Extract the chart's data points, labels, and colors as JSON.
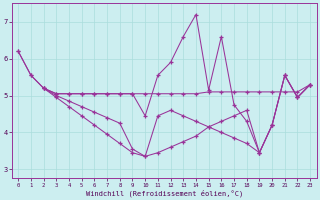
{
  "xlabel": "Windchill (Refroidissement éolien,°C)",
  "background_color": "#cceef0",
  "grid_color": "#aadddd",
  "line_color": "#993399",
  "xlim": [
    -0.5,
    23.5
  ],
  "ylim": [
    2.75,
    7.5
  ],
  "yticks": [
    3,
    4,
    5,
    6,
    7
  ],
  "xticks": [
    0,
    1,
    2,
    3,
    4,
    5,
    6,
    7,
    8,
    9,
    10,
    11,
    12,
    13,
    14,
    15,
    16,
    17,
    18,
    19,
    20,
    21,
    22,
    23
  ],
  "series": [
    {
      "x": [
        0,
        1,
        2,
        3,
        4,
        5,
        6,
        7,
        8,
        9,
        10,
        11,
        12,
        13,
        14,
        15,
        16,
        17,
        18,
        19,
        20,
        21,
        22,
        23
      ],
      "y": [
        6.2,
        5.55,
        5.2,
        5.05,
        5.05,
        5.05,
        5.05,
        5.05,
        5.05,
        5.05,
        4.45,
        5.55,
        5.9,
        6.6,
        7.2,
        5.15,
        6.6,
        4.75,
        4.3,
        3.45,
        4.2,
        5.55,
        4.95,
        5.3
      ]
    },
    {
      "x": [
        2,
        3,
        4,
        5,
        6,
        7,
        8,
        9,
        10,
        11,
        12,
        13,
        14,
        15,
        16,
        17,
        18,
        19,
        20,
        21,
        22,
        23
      ],
      "y": [
        5.2,
        5.05,
        5.05,
        5.05,
        5.05,
        5.05,
        5.05,
        5.05,
        5.05,
        5.05,
        5.05,
        5.05,
        5.05,
        5.1,
        5.1,
        5.1,
        5.1,
        5.1,
        5.1,
        5.1,
        5.1,
        5.3
      ]
    },
    {
      "x": [
        0,
        1,
        2,
        3,
        4,
        5,
        6,
        7,
        8,
        9,
        10,
        11,
        12,
        13,
        14,
        15,
        16,
        17,
        18,
        19,
        20,
        21,
        22,
        23
      ],
      "y": [
        6.2,
        5.55,
        5.2,
        5.0,
        4.85,
        4.7,
        4.55,
        4.4,
        4.25,
        3.55,
        3.35,
        4.45,
        4.6,
        4.45,
        4.3,
        4.15,
        4.0,
        3.85,
        3.7,
        3.45,
        4.2,
        5.55,
        4.95,
        5.3
      ]
    },
    {
      "x": [
        2,
        3,
        4,
        5,
        6,
        7,
        8,
        9,
        10,
        11,
        12,
        13,
        14,
        15,
        16,
        17,
        18,
        19,
        20,
        21,
        22,
        23
      ],
      "y": [
        5.2,
        4.95,
        4.7,
        4.45,
        4.2,
        3.95,
        3.7,
        3.45,
        3.35,
        3.45,
        3.6,
        3.75,
        3.9,
        4.15,
        4.3,
        4.45,
        4.6,
        3.45,
        4.2,
        5.55,
        4.95,
        5.3
      ]
    }
  ]
}
